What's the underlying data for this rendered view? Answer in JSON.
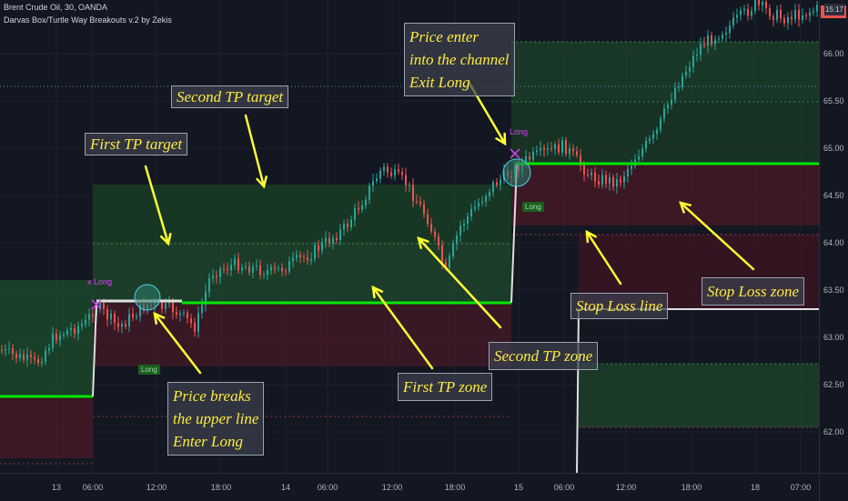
{
  "header": {
    "symbol_line": "Brent Crude Oil, 30, OANDA",
    "indicator_line": "Darvas Box/Turtle Way Breakouts v.2 by Zekis"
  },
  "clock": "15:17",
  "price_axis": [
    "66.00",
    "65.50",
    "65.00",
    "64.50",
    "64.00",
    "63.50",
    "63.00",
    "62.50",
    "62.00"
  ],
  "time_axis": [
    "13",
    "06:00",
    "12:00",
    "18:00",
    "14",
    "06:00",
    "12:00",
    "18:00",
    "15",
    "06:00",
    "12:00",
    "18:00",
    "18",
    "07:00"
  ],
  "annotations": {
    "second_tp_target": "Second TP target",
    "first_tp_target": "First TP target",
    "price_enter_1": "Price enter",
    "price_enter_2": "into the channel",
    "price_enter_3": "Exit Long",
    "price_breaks_1": "Price breaks",
    "price_breaks_2": "the upper line",
    "price_breaks_3": "Enter Long",
    "first_tp_zone": "First TP zone",
    "second_tp_zone": "Second TP zone",
    "stop_loss_line": "Stop Loss line",
    "stop_loss_zone": "Stop Loss zone"
  },
  "markers": {
    "x_long_1": "x Long",
    "long_1": "Long",
    "x_long_2": "Long",
    "long_2": "Long"
  },
  "colors": {
    "background": "#131722",
    "breakout_line": "#00e600",
    "tp_zone": "#1e4d2b",
    "sl_zone": "#4a1a26",
    "annotation_text": "#ffeb3b",
    "arrow": "#ffff33",
    "candle_up": "#26a69a",
    "candle_down": "#ef5350"
  }
}
